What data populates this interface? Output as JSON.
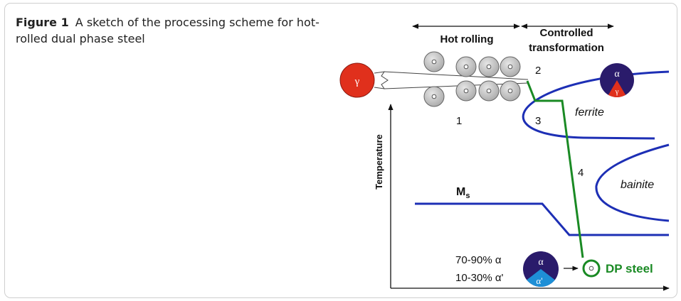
{
  "caption": {
    "label": "Figure 1",
    "text": "A sketch of the processing scheme for hot-rolled dual phase steel"
  },
  "diagram": {
    "stage_hot_rolling": "Hot rolling",
    "stage_controlled_line1": "Controlled",
    "stage_controlled_line2": "transformation",
    "austenite_symbol": "γ",
    "ferrite_symbol": "α",
    "martensite_symbol": "α'",
    "y_axis_label": "Temperature",
    "region_ferrite": "ferrite",
    "region_bainite": "bainite",
    "ms_label_main": "M",
    "ms_label_sub": "s",
    "step_1": "1",
    "step_2": "2",
    "step_3": "3",
    "step_4": "4",
    "composition_line1": "70-90% α",
    "composition_line2": "10-30% α'",
    "product_label": "DP steel",
    "colors": {
      "curve_blue": "#1d2fb5",
      "path_green": "#1a8a24",
      "austenite_red": "#e0301c",
      "ferrite_navy": "#2a1b6b",
      "martensite_cyan": "#1e8fd6",
      "product_green": "#1a8a24"
    }
  }
}
